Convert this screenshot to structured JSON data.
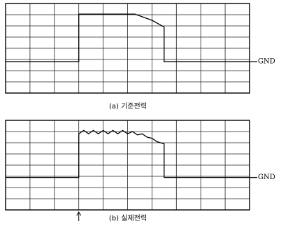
{
  "chart_data": [
    {
      "type": "line",
      "caption": "(a) 기준전력",
      "ground_label": "GND",
      "color": "#000000",
      "grid": true,
      "xlim": [
        0,
        10
      ],
      "ylim": [
        0,
        8
      ],
      "xticks": [
        0,
        1,
        2,
        3,
        4,
        5,
        6,
        7,
        8,
        9,
        10
      ],
      "yticks": [
        0,
        1,
        2,
        3,
        4,
        5,
        6,
        7,
        8
      ],
      "x": [
        0,
        3,
        3,
        5.3,
        6.0,
        6.5,
        6.5,
        10
      ],
      "values": [
        2.8,
        2.8,
        7.05,
        7.05,
        6.5,
        5.9,
        2.8,
        2.8
      ]
    },
    {
      "type": "line",
      "caption": "(b) 실제전력",
      "ground_label": "GND",
      "color": "#000000",
      "grid": true,
      "xlim": [
        0,
        10
      ],
      "ylim": [
        0,
        8
      ],
      "xticks": [
        0,
        1,
        2,
        3,
        4,
        5,
        6,
        7,
        8,
        9,
        10
      ],
      "yticks": [
        0,
        1,
        2,
        3,
        4,
        5,
        6,
        7,
        8
      ],
      "x": [
        0,
        3,
        3,
        3.2,
        3.4,
        3.6,
        3.8,
        4.0,
        4.2,
        4.4,
        4.6,
        4.8,
        5.0,
        5.2,
        5.4,
        5.6,
        5.8,
        6.0,
        6.2,
        6.5,
        6.5,
        10
      ],
      "values": [
        2.9,
        2.9,
        6.8,
        7.1,
        6.8,
        7.1,
        6.8,
        7.1,
        6.8,
        7.1,
        6.8,
        7.1,
        6.8,
        7.0,
        6.7,
        6.8,
        6.5,
        6.4,
        6.1,
        5.9,
        2.9,
        2.9
      ]
    }
  ]
}
